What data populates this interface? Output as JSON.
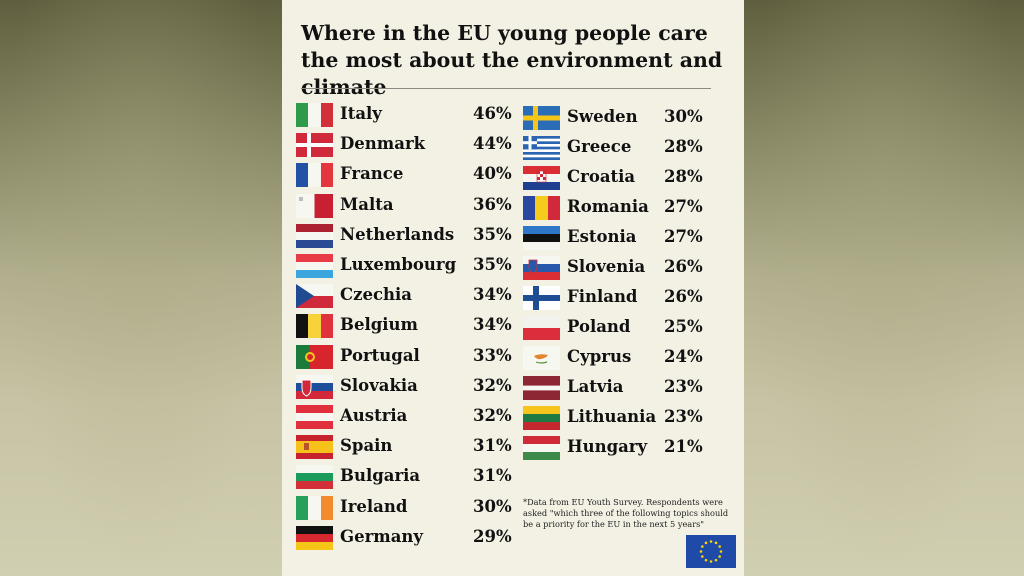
{
  "title": "Where in the EU young people care the most about the environment and climate",
  "note": "*Data from EU Youth Survey. Respondents were asked \"which three of the following topics should be a priority for the EU in the next 5 years\"",
  "chart_data": {
    "type": "table",
    "title": "Where in the EU young people care the most about the environment and climate",
    "columns": [
      [
        {
          "country": "Italy",
          "value": "46%"
        },
        {
          "country": "Denmark",
          "value": "44%"
        },
        {
          "country": "France",
          "value": "40%"
        },
        {
          "country": "Malta",
          "value": "36%"
        },
        {
          "country": "Netherlands",
          "value": "35%"
        },
        {
          "country": "Luxembourg",
          "value": "35%"
        },
        {
          "country": "Czechia",
          "value": "34%"
        },
        {
          "country": "Belgium",
          "value": "34%"
        },
        {
          "country": "Portugal",
          "value": "33%"
        },
        {
          "country": "Slovakia",
          "value": "32%"
        },
        {
          "country": "Austria",
          "value": "32%"
        },
        {
          "country": "Spain",
          "value": "31%"
        },
        {
          "country": "Bulgaria",
          "value": "31%"
        },
        {
          "country": "Ireland",
          "value": "30%"
        },
        {
          "country": "Germany",
          "value": "29%"
        }
      ],
      [
        {
          "country": "Sweden",
          "value": "30%"
        },
        {
          "country": "Greece",
          "value": "28%"
        },
        {
          "country": "Croatia",
          "value": "28%"
        },
        {
          "country": "Romania",
          "value": "27%"
        },
        {
          "country": "Estonia",
          "value": "27%"
        },
        {
          "country": "Slovenia",
          "value": "26%"
        },
        {
          "country": "Finland",
          "value": "26%"
        },
        {
          "country": "Poland",
          "value": "25%"
        },
        {
          "country": "Cyprus",
          "value": "24%"
        },
        {
          "country": "Latvia",
          "value": "23%"
        },
        {
          "country": "Lithuania",
          "value": "23%"
        },
        {
          "country": "Hungary",
          "value": "21%"
        }
      ]
    ]
  }
}
